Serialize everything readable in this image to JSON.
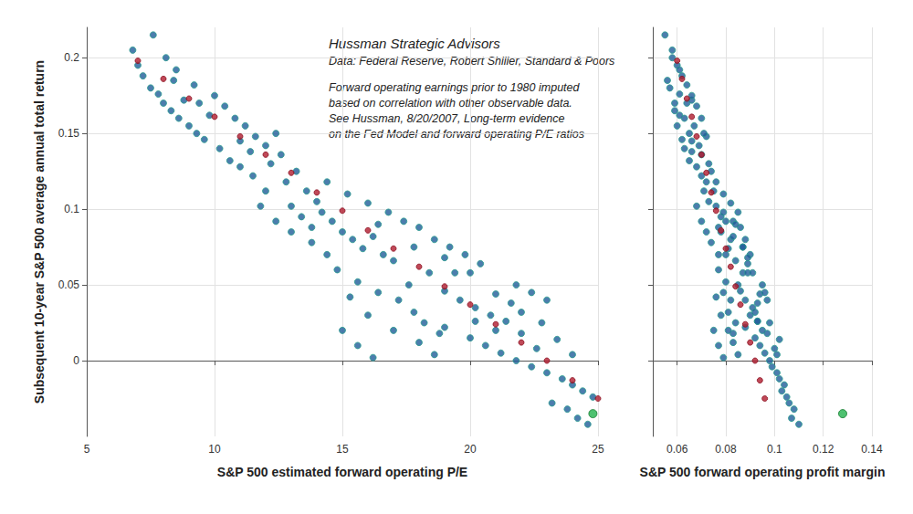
{
  "chart_data": {
    "type": "scatter",
    "xlabel": "S&P 500 estimated forward operating P/E",
    "ylabel": "S&P 500 forward operating profit margin",
    "zlabel": "Subsequent 10-year S&P 500 average annual total return",
    "xlim": [
      5,
      25
    ],
    "xticks": [
      5,
      10,
      15,
      20,
      25
    ],
    "ylim": [
      0.05,
      0.14
    ],
    "yticks": [
      0.06,
      0.08,
      0.1,
      0.12,
      0.14
    ],
    "zlim": [
      -0.05,
      0.22
    ],
    "zticks": [
      0,
      0.05,
      0.1,
      0.15,
      0.2
    ],
    "grid": true,
    "annotations": [
      "Hussman Strategic Advisors",
      "Data: Federal Reserve, Robert Shiller, Standard & Poors",
      "Forward operating earnings prior to 1980 imputed",
      "based on correlation with other observable data.",
      "See Hussman, 8/20/2007, Long-term evidence",
      "on the Fed Model and forward operating P/E ratios"
    ],
    "series": [
      {
        "color": "#1f5c99",
        "marker": "circle",
        "points": [
          [
            6.8,
            0.058,
            0.205
          ],
          [
            7.0,
            0.06,
            0.195
          ],
          [
            7.2,
            0.062,
            0.188
          ],
          [
            7.5,
            0.057,
            0.18
          ],
          [
            7.8,
            0.061,
            0.176
          ],
          [
            8.0,
            0.064,
            0.17
          ],
          [
            8.3,
            0.059,
            0.165
          ],
          [
            8.6,
            0.063,
            0.16
          ],
          [
            8.8,
            0.066,
            0.172
          ],
          [
            9.0,
            0.06,
            0.155
          ],
          [
            9.3,
            0.065,
            0.15
          ],
          [
            9.6,
            0.062,
            0.146
          ],
          [
            7.6,
            0.055,
            0.215
          ],
          [
            8.1,
            0.058,
            0.2
          ],
          [
            8.5,
            0.061,
            0.192
          ],
          [
            9.2,
            0.064,
            0.182
          ],
          [
            10.0,
            0.066,
            0.175
          ],
          [
            10.4,
            0.068,
            0.168
          ],
          [
            10.8,
            0.07,
            0.16
          ],
          [
            11.2,
            0.067,
            0.155
          ],
          [
            11.6,
            0.072,
            0.148
          ],
          [
            12.0,
            0.069,
            0.142
          ],
          [
            12.4,
            0.071,
            0.15
          ],
          [
            10.2,
            0.063,
            0.14
          ],
          [
            10.6,
            0.065,
            0.132
          ],
          [
            11.0,
            0.068,
            0.128
          ],
          [
            11.5,
            0.07,
            0.122
          ],
          [
            12.2,
            0.073,
            0.13
          ],
          [
            12.8,
            0.072,
            0.118
          ],
          [
            13.2,
            0.074,
            0.125
          ],
          [
            13.6,
            0.075,
            0.112
          ],
          [
            14.0,
            0.073,
            0.105
          ],
          [
            9.8,
            0.061,
            0.162
          ],
          [
            11.4,
            0.066,
            0.138
          ],
          [
            12.6,
            0.07,
            0.136
          ],
          [
            13.0,
            0.076,
            0.102
          ],
          [
            13.4,
            0.078,
            0.095
          ],
          [
            13.8,
            0.077,
            0.088
          ],
          [
            14.2,
            0.079,
            0.098
          ],
          [
            14.6,
            0.08,
            0.092
          ],
          [
            15.0,
            0.078,
            0.085
          ],
          [
            15.4,
            0.082,
            0.08
          ],
          [
            15.8,
            0.081,
            0.074
          ],
          [
            16.2,
            0.083,
            0.082
          ],
          [
            16.6,
            0.08,
            0.07
          ],
          [
            17.0,
            0.084,
            0.066
          ],
          [
            14.4,
            0.076,
            0.118
          ],
          [
            15.2,
            0.079,
            0.11
          ],
          [
            16.0,
            0.082,
            0.104
          ],
          [
            16.8,
            0.085,
            0.098
          ],
          [
            17.4,
            0.083,
            0.092
          ],
          [
            18.0,
            0.086,
            0.088
          ],
          [
            18.6,
            0.088,
            0.08
          ],
          [
            19.2,
            0.087,
            0.075
          ],
          [
            19.8,
            0.09,
            0.07
          ],
          [
            20.4,
            0.089,
            0.064
          ],
          [
            14.8,
            0.077,
            0.06
          ],
          [
            15.6,
            0.08,
            0.052
          ],
          [
            16.4,
            0.079,
            0.045
          ],
          [
            17.2,
            0.082,
            0.04
          ],
          [
            17.8,
            0.081,
            0.032
          ],
          [
            18.2,
            0.084,
            0.025
          ],
          [
            18.8,
            0.083,
            0.018
          ],
          [
            16.0,
            0.078,
            0.03
          ],
          [
            15.3,
            0.076,
            0.042
          ],
          [
            17.6,
            0.085,
            0.05
          ],
          [
            18.4,
            0.087,
            0.058
          ],
          [
            19.0,
            0.086,
            0.046
          ],
          [
            19.6,
            0.088,
            0.04
          ],
          [
            20.2,
            0.091,
            0.035
          ],
          [
            20.8,
            0.09,
            0.03
          ],
          [
            21.4,
            0.093,
            0.026
          ],
          [
            22.0,
            0.092,
            0.032
          ],
          [
            21.0,
            0.094,
            0.044
          ],
          [
            21.8,
            0.095,
            0.05
          ],
          [
            22.4,
            0.096,
            0.045
          ],
          [
            23.0,
            0.097,
            0.04
          ],
          [
            19.4,
            0.089,
            0.058
          ],
          [
            18.0,
            0.083,
            0.012
          ],
          [
            18.6,
            0.085,
            0.004
          ],
          [
            17.0,
            0.081,
            0.02
          ],
          [
            19.0,
            0.088,
            0.022
          ],
          [
            20.0,
            0.092,
            0.015
          ],
          [
            20.6,
            0.094,
            0.01
          ],
          [
            21.2,
            0.096,
            0.005
          ],
          [
            21.8,
            0.098,
            0.0
          ],
          [
            22.4,
            0.099,
            -0.004
          ],
          [
            23.0,
            0.101,
            -0.008
          ],
          [
            23.6,
            0.102,
            -0.012
          ],
          [
            24.0,
            0.104,
            -0.016
          ],
          [
            24.4,
            0.103,
            -0.02
          ],
          [
            24.8,
            0.105,
            -0.024
          ],
          [
            23.2,
            0.106,
            -0.028
          ],
          [
            23.8,
            0.108,
            -0.032
          ],
          [
            24.2,
            0.107,
            -0.038
          ],
          [
            24.6,
            0.11,
            -0.042
          ],
          [
            22.6,
            0.1,
            0.008
          ],
          [
            23.4,
            0.102,
            0.014
          ],
          [
            24.0,
            0.101,
            0.004
          ],
          [
            22.0,
            0.097,
            0.018
          ],
          [
            21.0,
            0.095,
            0.02
          ],
          [
            20.2,
            0.093,
            0.026
          ],
          [
            13.0,
            0.072,
            0.085
          ],
          [
            12.4,
            0.07,
            0.092
          ],
          [
            11.8,
            0.068,
            0.102
          ],
          [
            12.0,
            0.071,
            0.112
          ],
          [
            13.8,
            0.074,
            0.078
          ],
          [
            14.4,
            0.077,
            0.07
          ],
          [
            11.0,
            0.066,
            0.145
          ],
          [
            9.4,
            0.059,
            0.17
          ],
          [
            8.4,
            0.056,
            0.185
          ],
          [
            16.4,
            0.084,
            0.09
          ],
          [
            17.8,
            0.087,
            0.075
          ],
          [
            19.0,
            0.089,
            0.068
          ],
          [
            20.0,
            0.091,
            0.058
          ],
          [
            21.6,
            0.093,
            0.038
          ],
          [
            22.8,
            0.098,
            0.025
          ],
          [
            15.0,
            0.075,
            0.02
          ],
          [
            15.6,
            0.077,
            0.01
          ],
          [
            16.2,
            0.079,
            0.002
          ]
        ]
      },
      {
        "color": "#b01c2e",
        "marker": "circle",
        "points": [
          [
            7,
            0.06,
            0.198
          ],
          [
            8,
            0.062,
            0.186
          ],
          [
            9,
            0.064,
            0.173
          ],
          [
            10,
            0.066,
            0.161
          ],
          [
            11,
            0.068,
            0.148
          ],
          [
            12,
            0.07,
            0.136
          ],
          [
            13,
            0.072,
            0.124
          ],
          [
            14,
            0.074,
            0.111
          ],
          [
            15,
            0.076,
            0.099
          ],
          [
            16,
            0.078,
            0.086
          ],
          [
            17,
            0.08,
            0.074
          ],
          [
            18,
            0.082,
            0.062
          ],
          [
            19,
            0.084,
            0.049
          ],
          [
            20,
            0.086,
            0.037
          ],
          [
            21,
            0.088,
            0.024
          ],
          [
            22,
            0.09,
            0.012
          ],
          [
            23,
            0.092,
            0.0
          ],
          [
            24,
            0.094,
            -0.013
          ],
          [
            25,
            0.096,
            -0.025
          ]
        ]
      },
      {
        "color": "#22b14c",
        "marker": "circle",
        "points": [
          [
            24.8,
            0.128,
            -0.035
          ]
        ]
      }
    ]
  }
}
